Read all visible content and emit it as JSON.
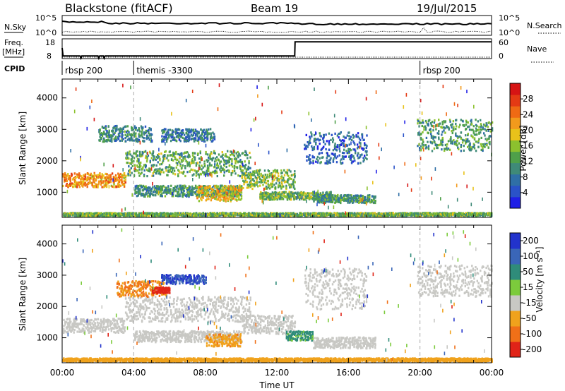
{
  "header": {
    "station": "Blackstone (fitACF)",
    "beam": "Beam 19",
    "date": "19/Jul/2015"
  },
  "summary": {
    "nsky_label": "N.Sky",
    "nsearch_label": "N.Search",
    "freq_label_1": "Freq.",
    "freq_label_2": "[MHz]",
    "nave_label": "Nave",
    "cpid_label": "CPID",
    "nsky_ticks": [
      "10^5",
      "10^0"
    ],
    "nsearch_ticks": [
      "10^5",
      "10^0"
    ],
    "freq_ticks": [
      "18",
      "8"
    ],
    "nave_ticks": [
      "60",
      "0"
    ],
    "cpid_segments": [
      {
        "name": "rbsp 200",
        "start_hour": 0
      },
      {
        "name": "themis -3300",
        "start_hour": 4
      },
      {
        "name": "rbsp 200",
        "start_hour": 20
      }
    ],
    "freq_series": {
      "hours": [
        0,
        0.05,
        1.0,
        1.05,
        1.1,
        1.15,
        2.0,
        2.05,
        2.1,
        2.3,
        2.35,
        2.4,
        13.0,
        13.02,
        24.0
      ],
      "mhz": [
        14,
        9.5,
        9.5,
        8.2,
        9.5,
        9.5,
        9.5,
        8.2,
        9.5,
        9.5,
        8.2,
        9.5,
        9.5,
        17.5,
        17.5
      ]
    }
  },
  "chart_data": [
    {
      "type": "heatmap",
      "title": "",
      "ylabel": "Slant Range [km]",
      "xlabel": "",
      "xlim": [
        0,
        24
      ],
      "ylim": [
        200,
        4600
      ],
      "yticks": [
        "1000",
        "2000",
        "3000",
        "4000"
      ],
      "colorbar": {
        "label": "Power [dB]",
        "ticks": [
          "4",
          "8",
          "12",
          "16",
          "20",
          "24",
          "28"
        ],
        "colors": [
          "#1f1fe6",
          "#2a52c8",
          "#2f6fa6",
          "#3f8a78",
          "#4fa04a",
          "#8cc12e",
          "#e8c21a",
          "#f29a1c",
          "#ef6a14",
          "#e43a14",
          "#d61414"
        ]
      },
      "echo_regions": [
        {
          "t0": 0.0,
          "t1": 3.5,
          "r0": 1150,
          "r1": 1600,
          "power": 22
        },
        {
          "t0": 3.5,
          "t1": 10.5,
          "r0": 1500,
          "r1": 2300,
          "power": 13
        },
        {
          "t0": 2.0,
          "t1": 5.0,
          "r0": 2600,
          "r1": 3100,
          "power": 10
        },
        {
          "t0": 5.5,
          "t1": 8.5,
          "r0": 2600,
          "r1": 3000,
          "power": 8
        },
        {
          "t0": 4.0,
          "t1": 10.0,
          "r0": 850,
          "r1": 1200,
          "power": 11
        },
        {
          "t0": 7.5,
          "t1": 10.0,
          "r0": 700,
          "r1": 1200,
          "power": 19
        },
        {
          "t0": 10.0,
          "t1": 13.0,
          "r0": 1100,
          "r1": 1700,
          "power": 15
        },
        {
          "t0": 11.0,
          "t1": 15.0,
          "r0": 750,
          "r1": 1000,
          "power": 14
        },
        {
          "t0": 14.0,
          "t1": 17.5,
          "r0": 650,
          "r1": 900,
          "power": 11
        },
        {
          "t0": 13.5,
          "t1": 17.0,
          "r0": 1900,
          "r1": 2900,
          "power": 7
        },
        {
          "t0": 19.8,
          "t1": 24.0,
          "r0": 2300,
          "r1": 3300,
          "power": 12
        },
        {
          "t0": 0.0,
          "t1": 24.0,
          "r0": 230,
          "r1": 330,
          "power": 14
        }
      ]
    },
    {
      "type": "heatmap",
      "title": "",
      "ylabel": "Slant Range [km]",
      "xlabel": "Time UT",
      "xlim": [
        0,
        24
      ],
      "ylim": [
        200,
        4600
      ],
      "xticks": [
        "00:00",
        "04:00",
        "08:00",
        "12:00",
        "16:00",
        "20:00",
        "00:00"
      ],
      "yticks": [
        "1000",
        "2000",
        "3000",
        "4000"
      ],
      "colorbar": {
        "label": "Velocity [m s⁻¹]",
        "ticks": [
          "200",
          "100",
          "50",
          "15",
          "-15",
          "-50",
          "-100",
          "-200"
        ],
        "colors": [
          "#2233cc",
          "#3a66b8",
          "#2f8c7a",
          "#7ccb3c",
          "#c8c8c4",
          "#f0a21c",
          "#f07018",
          "#e02418"
        ]
      },
      "echo_regions": [
        {
          "t0": 0.0,
          "t1": 3.5,
          "r0": 1150,
          "r1": 1600,
          "velocity": 0
        },
        {
          "t0": 3.5,
          "t1": 10.5,
          "r0": 1500,
          "r1": 2300,
          "velocity": 0
        },
        {
          "t0": 3.0,
          "t1": 5.8,
          "r0": 2300,
          "r1": 2800,
          "velocity": -60
        },
        {
          "t0": 5.0,
          "t1": 6.0,
          "r0": 2400,
          "r1": 2600,
          "velocity": -200
        },
        {
          "t0": 5.5,
          "t1": 8.0,
          "r0": 2700,
          "r1": 3000,
          "velocity": 150
        },
        {
          "t0": 4.0,
          "t1": 10.0,
          "r0": 850,
          "r1": 1200,
          "velocity": 0
        },
        {
          "t0": 8.0,
          "t1": 10.0,
          "r0": 700,
          "r1": 1100,
          "velocity": -50
        },
        {
          "t0": 10.0,
          "t1": 13.0,
          "r0": 1100,
          "r1": 1700,
          "velocity": 0
        },
        {
          "t0": 12.5,
          "t1": 14.0,
          "r0": 900,
          "r1": 1200,
          "velocity": 40
        },
        {
          "t0": 14.0,
          "t1": 17.5,
          "r0": 650,
          "r1": 1000,
          "velocity": 0
        },
        {
          "t0": 13.5,
          "t1": 17.0,
          "r0": 1900,
          "r1": 3200,
          "velocity": 0
        },
        {
          "t0": 19.8,
          "t1": 24.0,
          "r0": 2300,
          "r1": 3300,
          "velocity": 0
        },
        {
          "t0": 0.0,
          "t1": 24.0,
          "r0": 230,
          "r1": 330,
          "velocity": -40
        }
      ]
    }
  ]
}
